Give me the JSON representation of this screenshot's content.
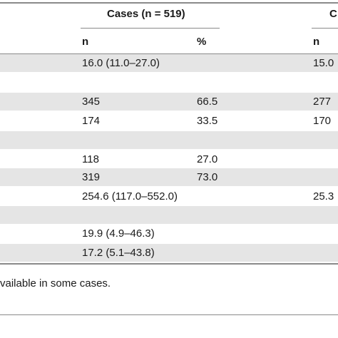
{
  "table": {
    "group_headers": [
      {
        "label": "Cases (n = 519)"
      },
      {
        "label": "C"
      }
    ],
    "sub_headers": [
      "n",
      "%",
      "n"
    ],
    "rows": [
      {
        "cases_n": "16.0 (11.0–27.0)",
        "cases_pct": "",
        "controls_n": "15.0"
      },
      {
        "cases_n": "",
        "cases_pct": "",
        "controls_n": ""
      },
      {
        "cases_n": "345",
        "cases_pct": "66.5",
        "controls_n": "277"
      },
      {
        "cases_n": "174",
        "cases_pct": "33.5",
        "controls_n": "170"
      },
      {
        "cases_n": "",
        "cases_pct": "",
        "controls_n": ""
      },
      {
        "cases_n": "118",
        "cases_pct": "27.0",
        "controls_n": ""
      },
      {
        "cases_n": "319",
        "cases_pct": "73.0",
        "controls_n": ""
      },
      {
        "cases_n": "254.6 (117.0–552.0)",
        "cases_pct": "",
        "controls_n": "25.3"
      },
      {
        "cases_n": "",
        "cases_pct": "",
        "controls_n": ""
      },
      {
        "cases_n": "19.9 (4.9–46.3)",
        "cases_pct": "",
        "controls_n": ""
      },
      {
        "cases_n": "17.2 (5.1–43.8)",
        "cases_pct": "",
        "controls_n": ""
      }
    ],
    "footnote": "vailable in some cases."
  }
}
